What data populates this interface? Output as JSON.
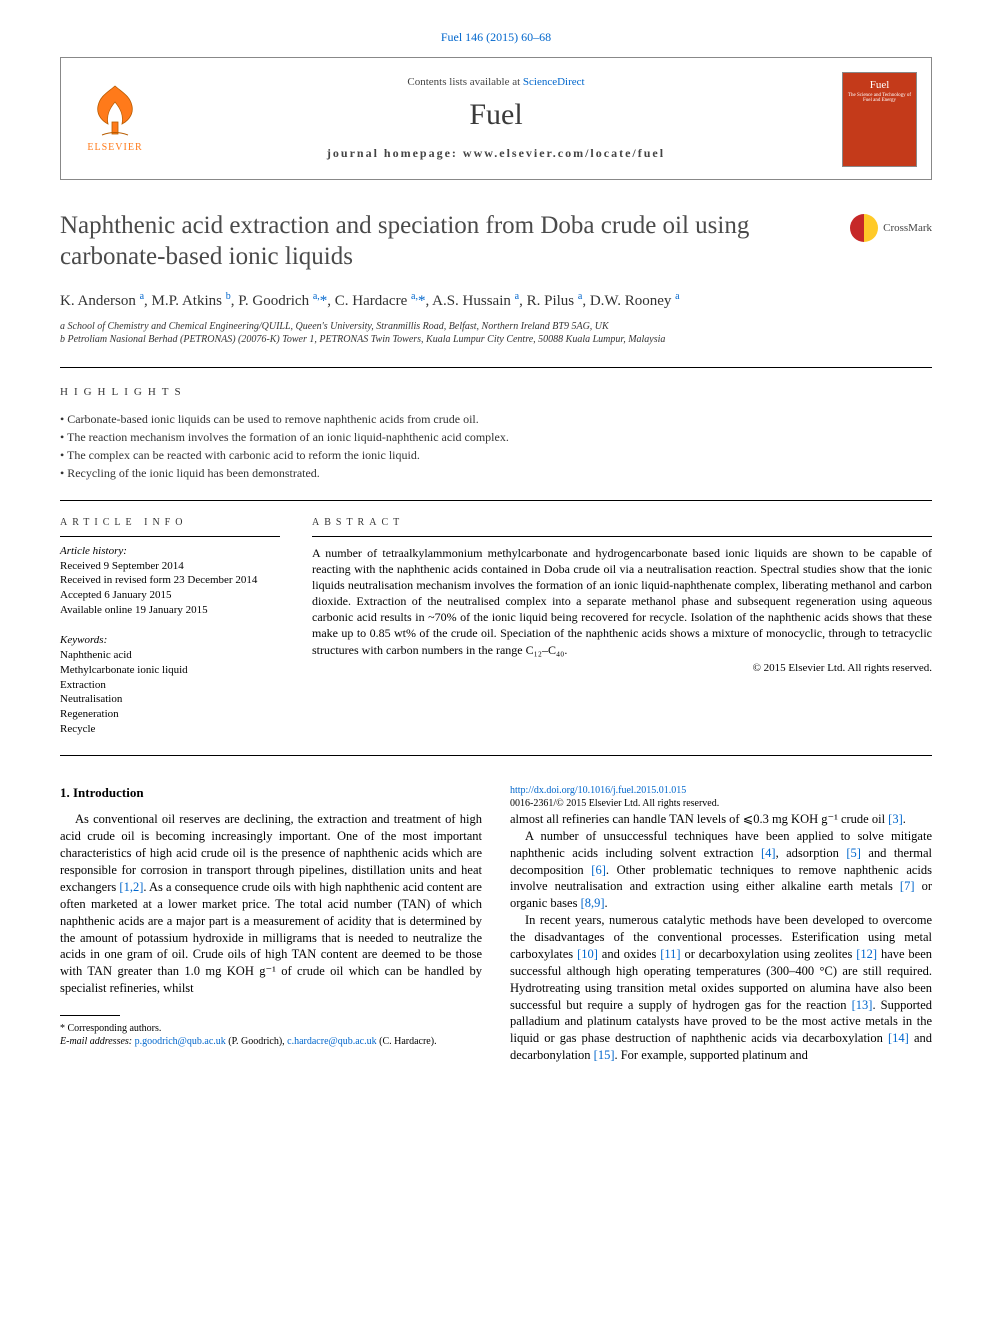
{
  "top_link": "Fuel 146 (2015) 60–68",
  "header": {
    "contents_line_prefix": "Contents lists available at ",
    "contents_link": "ScienceDirect",
    "journal_name": "Fuel",
    "homepage_label": "journal homepage: www.elsevier.com/locate/fuel",
    "elsevier_label": "ELSEVIER",
    "cover_title": "Fuel",
    "cover_sub": "The Science and Technology of Fuel and Energy"
  },
  "crossmark_label": "CrossMark",
  "title": "Naphthenic acid extraction and speciation from Doba crude oil using carbonate-based ionic liquids",
  "authors_html": "K. Anderson <sup>a</sup>, M.P. Atkins <sup>b</sup>, P. Goodrich <sup>a,</sup><span class='star'>*</span>, C. Hardacre <sup>a,</sup><span class='star'>*</span>, A.S. Hussain <sup>a</sup>, R. Pilus <sup>a</sup>, D.W. Rooney <sup>a</sup>",
  "affiliations": {
    "a": "a School of Chemistry and Chemical Engineering/QUILL, Queen's University, Stranmillis Road, Belfast, Northern Ireland BT9 5AG, UK",
    "b": "b Petroliam Nasional Berhad (PETRONAS) (20076-K) Tower 1, PETRONAS Twin Towers, Kuala Lumpur City Centre, 50088 Kuala Lumpur, Malaysia"
  },
  "highlights_label": "HIGHLIGHTS",
  "highlights": [
    "Carbonate-based ionic liquids can be used to remove naphthenic acids from crude oil.",
    "The reaction mechanism involves the formation of an ionic liquid-naphthenic acid complex.",
    "The complex can be reacted with carbonic acid to reform the ionic liquid.",
    "Recycling of the ionic liquid has been demonstrated."
  ],
  "article_info_label": "ARTICLE INFO",
  "abstract_label": "ABSTRACT",
  "history": {
    "label": "Article history:",
    "received": "Received 9 September 2014",
    "revised": "Received in revised form 23 December 2014",
    "accepted": "Accepted 6 January 2015",
    "online": "Available online 19 January 2015"
  },
  "keywords_label": "Keywords:",
  "keywords": [
    "Naphthenic acid",
    "Methylcarbonate ionic liquid",
    "Extraction",
    "Neutralisation",
    "Regeneration",
    "Recycle"
  ],
  "abstract": "A number of tetraalkylammonium methylcarbonate and hydrogencarbonate based ionic liquids are shown to be capable of reacting with the naphthenic acids contained in Doba crude oil via a neutralisation reaction. Spectral studies show that the ionic liquids neutralisation mechanism involves the formation of an ionic liquid-naphthenate complex, liberating methanol and carbon dioxide. Extraction of the neutralised complex into a separate methanol phase and subsequent regeneration using aqueous carbonic acid results in ~70% of the ionic liquid being recovered for recycle. Isolation of the naphthenic acids shows that these make up to 0.85 wt% of the crude oil. Speciation of the naphthenic acids shows a mixture of monocyclic, through to tetracyclic structures with carbon numbers in the range C₁₂–C₄₀.",
  "copyright": "© 2015 Elsevier Ltd. All rights reserved.",
  "intro_heading": "1. Introduction",
  "intro_paragraphs": [
    "As conventional oil reserves are declining, the extraction and treatment of high acid crude oil is becoming increasingly important. One of the most important characteristics of high acid crude oil is the presence of naphthenic acids which are responsible for corrosion in transport through pipelines, distillation units and heat exchangers <span class='ref-link'>[1,2]</span>. As a consequence crude oils with high naphthenic acid content are often marketed at a lower market price. The total acid number (TAN) of which naphthenic acids are a major part is a measurement of acidity that is determined by the amount of potassium hydroxide in milligrams that is needed to neutralize the acids in one gram of oil. Crude oils of high TAN content are deemed to be those with TAN greater than 1.0 mg KOH g⁻¹ of crude oil which can be handled by specialist refineries, whilst",
    "almost all refineries can handle TAN levels of ⩽0.3 mg KOH g⁻¹ crude oil <span class='ref-link'>[3]</span>.",
    "A number of unsuccessful techniques have been applied to solve mitigate naphthenic acids including solvent extraction <span class='ref-link'>[4]</span>, adsorption <span class='ref-link'>[5]</span> and thermal decomposition <span class='ref-link'>[6]</span>. Other problematic techniques to remove naphthenic acids involve neutralisation and extraction using either alkaline earth metals <span class='ref-link'>[7]</span> or organic bases <span class='ref-link'>[8,9]</span>.",
    "In recent years, numerous catalytic methods have been developed to overcome the disadvantages of the conventional processes. Esterification using metal carboxylates <span class='ref-link'>[10]</span> and oxides <span class='ref-link'>[11]</span> or decarboxylation using zeolites <span class='ref-link'>[12]</span> have been successful although high operating temperatures (300–400 °C) are still required. Hydrotreating using transition metal oxides supported on alumina have also been successful but require a supply of hydrogen gas for the reaction <span class='ref-link'>[13]</span>. Supported palladium and platinum catalysts have proved to be the most active metals in the liquid or gas phase destruction of naphthenic acids via decarboxylation <span class='ref-link'>[14]</span> and decarbonylation <span class='ref-link'>[15]</span>. For example, supported platinum and"
  ],
  "footnote": {
    "corresponding": "* Corresponding authors.",
    "email_label": "E-mail addresses:",
    "email1": "p.goodrich@qub.ac.uk",
    "email1_name": "(P. Goodrich),",
    "email2": "c.hardacre@qub.ac.uk",
    "email2_name": "(C. Hardacre)."
  },
  "bottom": {
    "doi": "http://dx.doi.org/10.1016/j.fuel.2015.01.015",
    "issn_line": "0016-2361/© 2015 Elsevier Ltd. All rights reserved."
  },
  "colors": {
    "link": "#0066cc",
    "elsevier_orange": "#ff7a1a",
    "cover_bg": "#c43a1a",
    "text": "#000000",
    "title_gray": "#4a4a4a"
  }
}
